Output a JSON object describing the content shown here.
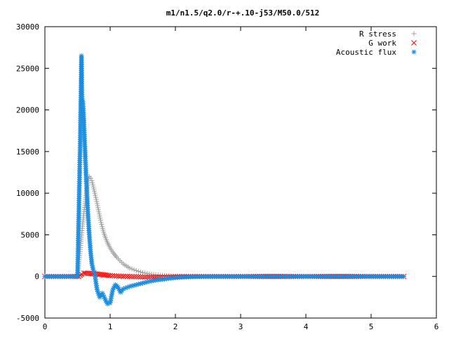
{
  "chart_data": {
    "type": "scatter",
    "title": "m1/n1.5/q2.0/r-+.10-j53/M50.0/512",
    "xlabel": "",
    "ylabel": "",
    "xlim": [
      0,
      6
    ],
    "ylim": [
      -5000,
      30000
    ],
    "x_ticks": [
      "0",
      "1",
      "2",
      "3",
      "4",
      "5",
      "6"
    ],
    "y_ticks": [
      "-5000",
      "0",
      "5000",
      "10000",
      "15000",
      "20000",
      "25000",
      "30000"
    ],
    "grid": false,
    "legend_position": "top-right",
    "series": [
      {
        "name": "R stress",
        "marker": "plus",
        "color": "#a0a0a0",
        "x": [
          0.0,
          0.1,
          0.2,
          0.3,
          0.4,
          0.5,
          0.54,
          0.56,
          0.58,
          0.6,
          0.62,
          0.64,
          0.66,
          0.68,
          0.7,
          0.72,
          0.75,
          0.78,
          0.82,
          0.86,
          0.9,
          0.95,
          1.0,
          1.05,
          1.1,
          1.2,
          1.3,
          1.4,
          1.5,
          1.6,
          1.7,
          1.8,
          1.9,
          2.0,
          2.1,
          2.2,
          2.4,
          2.6,
          2.8,
          3.0,
          3.5,
          4.0,
          4.5,
          5.0,
          5.5
        ],
        "values": [
          0,
          0,
          0,
          0,
          0,
          0,
          3000,
          4700,
          6300,
          7800,
          9000,
          10200,
          11500,
          12000,
          11800,
          11500,
          10500,
          9500,
          8000,
          6500,
          5300,
          4200,
          3400,
          2800,
          2300,
          1500,
          1000,
          700,
          450,
          300,
          200,
          130,
          80,
          50,
          30,
          20,
          10,
          5,
          0,
          0,
          0,
          0,
          0,
          0,
          0
        ]
      },
      {
        "name": "G work",
        "marker": "cross",
        "color": "#ff0000",
        "x": [
          0.0,
          0.2,
          0.4,
          0.52,
          0.56,
          0.6,
          0.65,
          0.7,
          0.75,
          0.8,
          0.85,
          0.9,
          0.95,
          1.0,
          1.1,
          1.2,
          1.3,
          1.4,
          1.5,
          1.6,
          1.7,
          1.8,
          1.9,
          2.0,
          2.2,
          2.4,
          2.6,
          3.0,
          4.0,
          5.0,
          5.5
        ],
        "values": [
          0,
          0,
          0,
          0,
          250,
          400,
          380,
          350,
          320,
          280,
          250,
          200,
          150,
          100,
          50,
          20,
          0,
          -30,
          -60,
          -80,
          -90,
          -70,
          -50,
          -30,
          -10,
          0,
          0,
          0,
          0,
          0,
          0
        ]
      },
      {
        "name": "Acoustic flux",
        "marker": "star",
        "color": "#1a8ce0",
        "x": [
          0.0,
          0.1,
          0.2,
          0.3,
          0.4,
          0.5,
          0.54,
          0.56,
          0.57,
          0.58,
          0.59,
          0.6,
          0.61,
          0.62,
          0.63,
          0.64,
          0.66,
          0.68,
          0.7,
          0.72,
          0.74,
          0.76,
          0.78,
          0.8,
          0.84,
          0.88,
          0.92,
          0.96,
          1.0,
          1.04,
          1.08,
          1.12,
          1.16,
          1.2,
          1.3,
          1.4,
          1.5,
          1.6,
          1.7,
          1.8,
          1.9,
          2.0,
          2.1,
          2.2,
          2.4,
          2.6,
          3.0,
          3.5,
          4.0,
          4.5,
          5.0,
          5.5
        ],
        "values": [
          0,
          0,
          0,
          0,
          0,
          0,
          15700,
          26500,
          21100,
          21000,
          19900,
          18000,
          16100,
          14200,
          12200,
          10600,
          7500,
          5000,
          3000,
          1500,
          800,
          500,
          -600,
          -1600,
          -2500,
          -2000,
          -2700,
          -3300,
          -3200,
          -1600,
          -1000,
          -1300,
          -1900,
          -1500,
          -1200,
          -1000,
          -800,
          -600,
          -450,
          -350,
          -250,
          -150,
          -100,
          -60,
          -20,
          0,
          0,
          0,
          0,
          0,
          0,
          0
        ]
      }
    ]
  }
}
